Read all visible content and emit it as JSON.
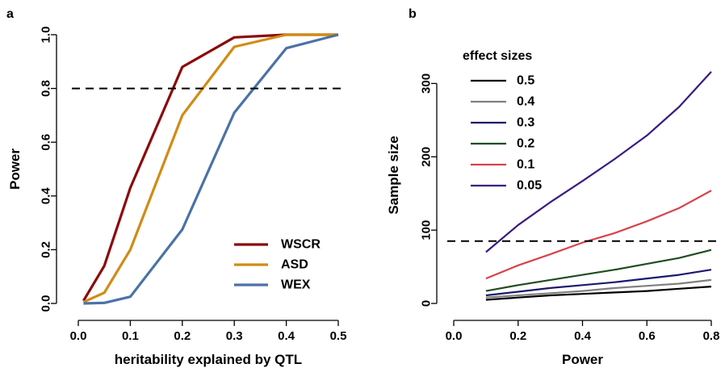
{
  "panels": {
    "a": {
      "label": "a"
    },
    "b": {
      "label": "b"
    }
  },
  "chart_data": [
    {
      "type": "line",
      "panel": "a",
      "xlabel": "heritability explained by QTL",
      "ylabel": "Power",
      "xlim": [
        0,
        0.5
      ],
      "ylim": [
        0,
        1
      ],
      "xticks": [
        0.0,
        0.1,
        0.2,
        0.3,
        0.4,
        0.5
      ],
      "xtick_labels": [
        "0.0",
        "0.1",
        "0.2",
        "0.3",
        "0.4",
        "0.5"
      ],
      "yticks": [
        0.0,
        0.2,
        0.4,
        0.6,
        0.8,
        1.0
      ],
      "ytick_labels": [
        "0.0",
        "0.2",
        "0.4",
        "0.6",
        "0.8",
        "1.0"
      ],
      "hline": 0.8,
      "legend_position": "bottom-right",
      "x": [
        0.01,
        0.05,
        0.1,
        0.2,
        0.3,
        0.4,
        0.5
      ],
      "series": [
        {
          "name": "WSCR",
          "color": "#8b0a0a",
          "values": [
            0.01,
            0.14,
            0.43,
            0.88,
            0.99,
            1.0,
            1.0
          ]
        },
        {
          "name": "ASD",
          "color": "#d08c14",
          "values": [
            0.005,
            0.04,
            0.2,
            0.7,
            0.955,
            1.0,
            1.0
          ]
        },
        {
          "name": "WEX",
          "color": "#4a72a8",
          "values": [
            0.0,
            0.002,
            0.025,
            0.275,
            0.71,
            0.95,
            1.0
          ]
        }
      ]
    },
    {
      "type": "line",
      "panel": "b",
      "xlabel": "Power",
      "ylabel": "Sample size",
      "xlim": [
        0,
        0.8
      ],
      "ylim": [
        0,
        350
      ],
      "xticks": [
        0.0,
        0.2,
        0.4,
        0.6,
        0.8
      ],
      "xtick_labels": [
        "0.0",
        "0.2",
        "0.4",
        "0.6",
        "0.8"
      ],
      "yticks": [
        0,
        100,
        200,
        300
      ],
      "ytick_labels": [
        "0",
        "100",
        "200",
        "300"
      ],
      "hline": 85,
      "legend_title": "effect sizes",
      "legend_position": "top-left",
      "x": [
        0.1,
        0.2,
        0.3,
        0.4,
        0.5,
        0.6,
        0.7,
        0.8
      ],
      "series": [
        {
          "name": "0.5",
          "color": "#000000",
          "values": [
            5,
            8,
            11,
            13,
            15,
            17,
            20,
            23
          ]
        },
        {
          "name": "0.4",
          "color": "#808080",
          "values": [
            8,
            11,
            14,
            17,
            21,
            24,
            27,
            32
          ]
        },
        {
          "name": "0.3",
          "color": "#1a1a6e",
          "values": [
            11,
            16,
            21,
            25,
            29,
            34,
            39,
            46
          ]
        },
        {
          "name": "0.2",
          "color": "#1e4d22",
          "values": [
            17,
            25,
            32,
            39,
            46,
            54,
            62,
            73
          ]
        },
        {
          "name": "0.1",
          "color": "#d6444c",
          "values": [
            34,
            52,
            67,
            83,
            96,
            112,
            130,
            154
          ]
        },
        {
          "name": "0.05",
          "color": "#3a1a80",
          "values": [
            70,
            107,
            138,
            167,
            197,
            229,
            268,
            316
          ]
        }
      ]
    }
  ]
}
